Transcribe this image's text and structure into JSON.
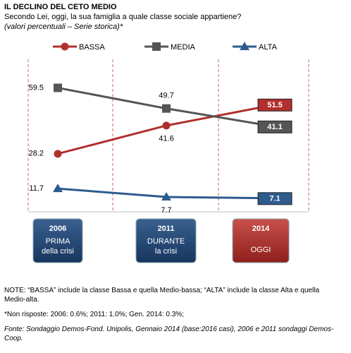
{
  "chart_data": {
    "type": "line",
    "title": "IL DECLINO DEL CETO MEDIO",
    "subtitle": "Secondo Lei, oggi, la sua famiglia a quale classe sociale appartiene?",
    "subtitle2": "(valori percentuali – Serie storica)*",
    "categories": [
      "2006",
      "2011",
      "2014"
    ],
    "category_notes": [
      [
        "PRIMA",
        "della crisi"
      ],
      [
        "DURANTE",
        "la crisi"
      ],
      [
        "OGGI"
      ]
    ],
    "series": [
      {
        "name": "BASSA",
        "color": "#b0302e",
        "marker": "circle",
        "values": [
          28.2,
          41.6,
          51.5
        ]
      },
      {
        "name": "MEDIA",
        "color": "#555555",
        "marker": "square",
        "values": [
          59.5,
          49.7,
          41.1
        ]
      },
      {
        "name": "ALTA",
        "color": "#2f5c8f",
        "marker": "triangle",
        "values": [
          11.7,
          7.7,
          7.1
        ]
      }
    ],
    "ylim": [
      0,
      65
    ],
    "notes": [
      "NOTE: “BASSA” include la classe Bassa e quella Medio-bassa; “ALTA” include la classe Alta e quella Medio-alta.",
      "*Non risposte: 2006: 0.6%; 2011: 1.0%; Gen. 2014: 0.3%;"
    ],
    "source": "Fonte: Sondaggio Demos-Fond. Unipolis, Gennaio 2014 (base:2016 casi), 2006 e 2011 sondaggi Demos-Coop."
  }
}
